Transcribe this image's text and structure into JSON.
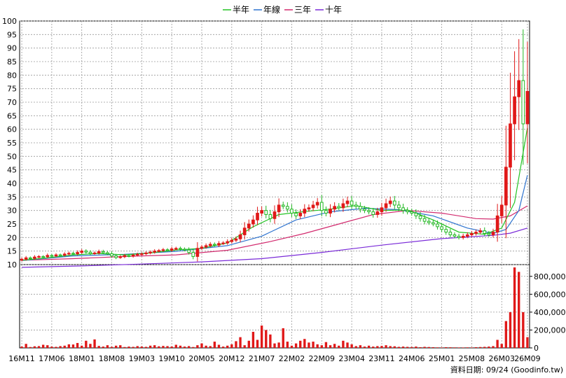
{
  "legend": {
    "items": [
      {
        "label": "半年",
        "color": "#22c322"
      },
      {
        "label": "年線",
        "color": "#2f74d0"
      },
      {
        "label": "三年",
        "color": "#d22a6e"
      },
      {
        "label": "十年",
        "color": "#7a2ad8"
      }
    ]
  },
  "footer": {
    "note": "資料日期: 09/24  (Goodinfo.tw)"
  },
  "colors": {
    "up": "#e01818",
    "down": "#22b822",
    "volume": "#e01818",
    "grid": "#9a9a9a"
  },
  "chart_data": {
    "type": "candlestick",
    "price_axis": {
      "min": 10,
      "max": 100,
      "ticks": [
        10,
        15,
        20,
        25,
        30,
        35,
        40,
        45,
        50,
        55,
        60,
        65,
        70,
        75,
        80,
        85,
        90,
        95,
        100
      ]
    },
    "volume_axis": {
      "min": 0,
      "max": 900000,
      "ticks": [
        0,
        200000,
        400000,
        600000,
        800000
      ],
      "tick_labels": [
        "0",
        "200,000",
        "400,000",
        "600,000",
        "800,000"
      ]
    },
    "x_ticks": [
      {
        "label": "16M11",
        "index": 0
      },
      {
        "label": "17M06",
        "index": 7
      },
      {
        "label": "18M01",
        "index": 14
      },
      {
        "label": "18M08",
        "index": 21
      },
      {
        "label": "19M03",
        "index": 28
      },
      {
        "label": "19M10",
        "index": 35
      },
      {
        "label": "20M05",
        "index": 42
      },
      {
        "label": "20M12",
        "index": 49
      },
      {
        "label": "21M07",
        "index": 56
      },
      {
        "label": "22M02",
        "index": 63
      },
      {
        "label": "22M09",
        "index": 70
      },
      {
        "label": "23M04",
        "index": 77
      },
      {
        "label": "23M11",
        "index": 84
      },
      {
        "label": "24M06",
        "index": 91
      },
      {
        "label": "25M01",
        "index": 98
      },
      {
        "label": "25M08",
        "index": 105
      },
      {
        "label": "26M03",
        "index": 112
      },
      {
        "label": "26M09",
        "index": 118
      }
    ],
    "close": [
      12.0,
      12.5,
      12.3,
      12.8,
      13.0,
      12.9,
      13.4,
      13.2,
      13.6,
      13.5,
      13.9,
      14.2,
      14.0,
      14.5,
      15.0,
      14.6,
      14.1,
      14.3,
      14.8,
      14.4,
      14.0,
      13.2,
      12.6,
      12.9,
      13.3,
      13.1,
      13.5,
      13.8,
      14.0,
      14.3,
      14.6,
      15.0,
      15.2,
      15.5,
      15.3,
      15.8,
      16.0,
      15.7,
      15.4,
      14.5,
      13.0,
      16.0,
      16.5,
      17.0,
      17.5,
      17.2,
      17.8,
      18.0,
      18.5,
      19.0,
      19.5,
      21.0,
      23.5,
      25.0,
      26.5,
      29.0,
      30.0,
      28.5,
      27.0,
      29.5,
      32.0,
      31.5,
      30.5,
      29.0,
      28.0,
      29.0,
      30.5,
      31.0,
      32.0,
      33.0,
      30.0,
      29.0,
      30.5,
      31.5,
      31.0,
      32.5,
      33.5,
      32.0,
      31.5,
      30.5,
      30.0,
      29.5,
      28.5,
      29.5,
      31.0,
      32.5,
      33.5,
      32.0,
      31.0,
      30.0,
      29.5,
      29.0,
      28.0,
      27.0,
      26.0,
      25.5,
      25.0,
      24.0,
      23.0,
      22.0,
      21.0,
      20.5,
      20.0,
      20.5,
      21.0,
      21.5,
      22.0,
      22.5,
      21.5,
      21.0,
      22.0,
      28.0,
      32.0,
      46.0,
      62.0,
      72.0,
      78.0,
      62.0,
      74.0
    ],
    "volume": [
      15000,
      45000,
      10000,
      18000,
      20000,
      35000,
      30000,
      14000,
      12000,
      20000,
      25000,
      40000,
      38000,
      55000,
      25000,
      80000,
      45000,
      95000,
      22000,
      15000,
      30000,
      12000,
      25000,
      30000,
      10000,
      15000,
      12000,
      20000,
      15000,
      12000,
      25000,
      30000,
      18000,
      22000,
      20000,
      15000,
      35000,
      25000,
      15000,
      20000,
      10000,
      30000,
      50000,
      25000,
      20000,
      70000,
      35000,
      15000,
      25000,
      40000,
      75000,
      120000,
      30000,
      80000,
      180000,
      90000,
      250000,
      200000,
      150000,
      50000,
      60000,
      220000,
      70000,
      25000,
      50000,
      80000,
      100000,
      60000,
      70000,
      40000,
      30000,
      65000,
      30000,
      45000,
      25000,
      80000,
      60000,
      40000,
      20000,
      30000,
      15000,
      25000,
      15000,
      20000,
      22000,
      30000,
      20000,
      18000,
      12000,
      15000,
      12000,
      10000,
      15000,
      8000,
      12000,
      10000,
      8000,
      6000,
      5000,
      8000,
      7000,
      6000,
      5000,
      5000,
      6000,
      5000,
      8000,
      10000,
      12000,
      15000,
      20000,
      90000,
      45000,
      300000,
      400000,
      900000,
      850000,
      400000,
      120000
    ],
    "ma_half_year": [
      [
        0,
        11.6
      ],
      [
        6,
        12.5
      ],
      [
        12,
        13.6
      ],
      [
        18,
        14.1
      ],
      [
        24,
        13.6
      ],
      [
        30,
        14.3
      ],
      [
        36,
        15.4
      ],
      [
        42,
        16.0
      ],
      [
        48,
        18.0
      ],
      [
        54,
        24.0
      ],
      [
        60,
        28.5
      ],
      [
        66,
        29.6
      ],
      [
        72,
        30.5
      ],
      [
        78,
        31.8
      ],
      [
        84,
        30.0
      ],
      [
        90,
        30.2
      ],
      [
        96,
        26.5
      ],
      [
        102,
        22.0
      ],
      [
        108,
        21.2
      ],
      [
        112,
        23.5
      ],
      [
        115,
        33.0
      ],
      [
        118,
        60.5
      ]
    ],
    "ma_year": [
      [
        0,
        11.5
      ],
      [
        12,
        13.2
      ],
      [
        24,
        13.8
      ],
      [
        36,
        14.9
      ],
      [
        48,
        17.0
      ],
      [
        56,
        20.5
      ],
      [
        64,
        26.5
      ],
      [
        72,
        29.5
      ],
      [
        80,
        30.8
      ],
      [
        88,
        30.3
      ],
      [
        96,
        28.0
      ],
      [
        104,
        23.5
      ],
      [
        110,
        21.5
      ],
      [
        113,
        23.0
      ],
      [
        116,
        30.0
      ],
      [
        118,
        43.0
      ]
    ],
    "ma_three_year": [
      [
        0,
        11.6
      ],
      [
        12,
        12.2
      ],
      [
        24,
        13.0
      ],
      [
        36,
        13.6
      ],
      [
        48,
        15.3
      ],
      [
        58,
        18.5
      ],
      [
        66,
        21.5
      ],
      [
        74,
        25.0
      ],
      [
        82,
        28.5
      ],
      [
        90,
        30.0
      ],
      [
        98,
        29.0
      ],
      [
        106,
        27.0
      ],
      [
        110,
        26.8
      ],
      [
        114,
        28.0
      ],
      [
        118,
        31.7
      ]
    ],
    "ma_ten_year": [
      [
        0,
        9.0
      ],
      [
        14,
        9.5
      ],
      [
        28,
        10.2
      ],
      [
        42,
        11.0
      ],
      [
        56,
        12.2
      ],
      [
        70,
        14.5
      ],
      [
        84,
        17.2
      ],
      [
        98,
        19.6
      ],
      [
        110,
        20.8
      ],
      [
        114,
        21.6
      ],
      [
        118,
        23.5
      ]
    ]
  }
}
